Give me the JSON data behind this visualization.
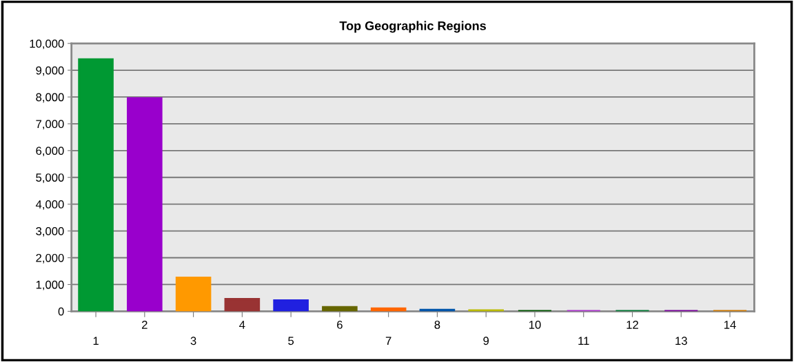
{
  "chart_data": {
    "type": "bar",
    "title": "Top Geographic Regions",
    "categories": [
      "1",
      "2",
      "3",
      "4",
      "5",
      "6",
      "7",
      "8",
      "9",
      "10",
      "11",
      "12",
      "13",
      "14"
    ],
    "values": [
      9400,
      7950,
      1250,
      450,
      400,
      150,
      100,
      50,
      30,
      0,
      0,
      0,
      0,
      0
    ],
    "colors": [
      "#009933",
      "#9900cc",
      "#ff9900",
      "#993333",
      "#2020e0",
      "#666600",
      "#ff6600",
      "#0055aa",
      "#bbbb00",
      "#005500",
      "#aa33cc",
      "#007733",
      "#770099",
      "#cc7700"
    ],
    "ylim": [
      0,
      10000
    ],
    "yticks": [
      {
        "value": 0,
        "label": "0"
      },
      {
        "value": 1000,
        "label": "1,000"
      },
      {
        "value": 2000,
        "label": "2,000"
      },
      {
        "value": 3000,
        "label": "3,000"
      },
      {
        "value": 4000,
        "label": "4,000"
      },
      {
        "value": 5000,
        "label": "5,000"
      },
      {
        "value": 6000,
        "label": "6,000"
      },
      {
        "value": 7000,
        "label": "7,000"
      },
      {
        "value": 8000,
        "label": "8,000"
      },
      {
        "value": 9000,
        "label": "9,000"
      },
      {
        "value": 10000,
        "label": "10,000"
      }
    ],
    "grid": "y"
  }
}
